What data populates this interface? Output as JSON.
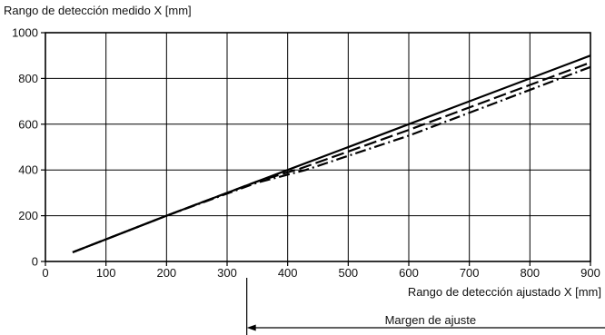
{
  "chart_data": {
    "type": "line",
    "ylabel": "Rango de detección medido X [mm]",
    "xlabel": "Rango de detección ajustado X [mm]",
    "xlim": [
      0,
      900
    ],
    "ylim": [
      0,
      1000
    ],
    "x_ticks": [
      0,
      100,
      200,
      300,
      400,
      500,
      600,
      700,
      800,
      900
    ],
    "y_ticks": [
      0,
      200,
      400,
      600,
      800,
      1000
    ],
    "grid": true,
    "series": [
      {
        "style": "solid",
        "x": [
          45,
          200,
          400,
          600,
          900
        ],
        "y": [
          40,
          200,
          400,
          600,
          900
        ]
      },
      {
        "style": "dashed",
        "x": [
          45,
          200,
          350,
          420,
          600,
          900
        ],
        "y": [
          40,
          200,
          350,
          405,
          575,
          870
        ]
      },
      {
        "style": "dash-dot",
        "x": [
          45,
          200,
          350,
          430,
          600,
          900
        ],
        "y": [
          40,
          200,
          345,
          400,
          550,
          850
        ]
      }
    ],
    "annotation": {
      "label": "Margen de ajuste",
      "x_range": [
        340,
        900
      ]
    }
  }
}
